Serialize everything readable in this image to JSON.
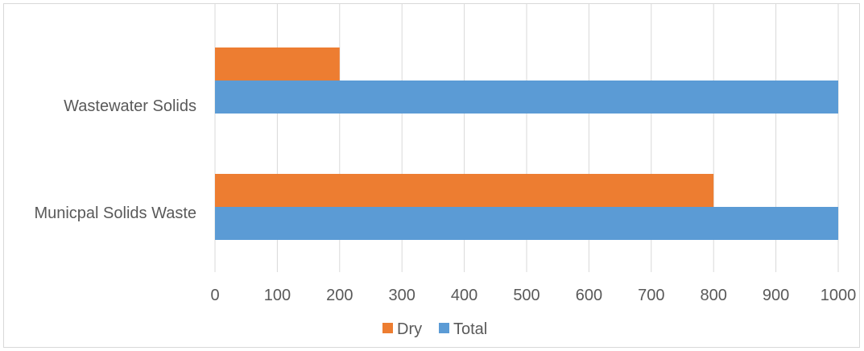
{
  "chart_data": {
    "type": "bar",
    "orientation": "horizontal",
    "categories": [
      "Wastewater Solids",
      "Municpal Solids Waste"
    ],
    "series": [
      {
        "name": "Dry",
        "values": [
          200,
          800
        ],
        "color": "#ed7d31"
      },
      {
        "name": "Total",
        "values": [
          1000,
          1000
        ],
        "color": "#5b9bd5"
      }
    ],
    "xlim": [
      0,
      1000
    ],
    "xticks": [
      "0",
      "100",
      "200",
      "300",
      "400",
      "500",
      "600",
      "700",
      "800",
      "900",
      "1000"
    ],
    "grid": true,
    "legend_position": "bottom"
  }
}
